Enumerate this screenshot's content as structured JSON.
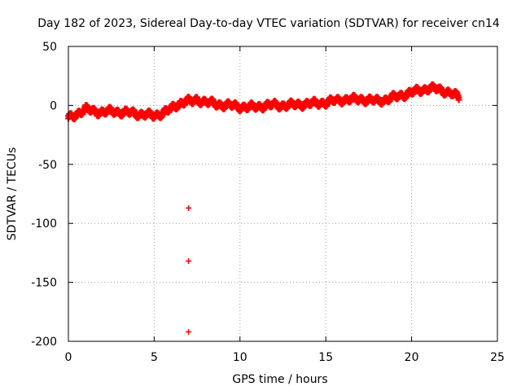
{
  "chart_data": {
    "type": "scatter",
    "title": "Day 182 of 2023, Sidereal Day-to-day VTEC variation (SDTVAR) for receiver cn14",
    "xlabel": "GPS time / hours",
    "ylabel": "SDTVAR / TECUs",
    "xlim": [
      0,
      25
    ],
    "ylim": [
      -200,
      50
    ],
    "xticks": [
      0,
      5,
      10,
      15,
      20,
      25
    ],
    "yticks": [
      50,
      0,
      -50,
      -100,
      -150,
      -200
    ],
    "grid": true,
    "marker": "plus",
    "color": "#ff0000",
    "series": [
      {
        "name": "SDTVAR",
        "trace": [
          [
            0.0,
            -10
          ],
          [
            0.3,
            -8
          ],
          [
            0.6,
            -5
          ],
          [
            1.0,
            -2
          ],
          [
            1.5,
            -4
          ],
          [
            2.0,
            -4.5
          ],
          [
            2.5,
            -4
          ],
          [
            3.0,
            -4.5
          ],
          [
            3.5,
            -5
          ],
          [
            4.0,
            -6
          ],
          [
            4.5,
            -6.5
          ],
          [
            5.0,
            -8
          ],
          [
            5.5,
            -5
          ],
          [
            6.0,
            -2
          ],
          [
            6.5,
            3
          ],
          [
            6.9,
            5
          ],
          [
            7.2,
            4
          ],
          [
            7.5,
            6
          ],
          [
            8.0,
            4
          ],
          [
            8.5,
            2.5
          ],
          [
            9.0,
            1.5
          ],
          [
            9.5,
            1
          ],
          [
            10.0,
            0
          ],
          [
            10.5,
            -0.5
          ],
          [
            11.0,
            0
          ],
          [
            11.5,
            1
          ],
          [
            12.0,
            1.5
          ],
          [
            12.5,
            1
          ],
          [
            13.0,
            1.5
          ],
          [
            13.5,
            2
          ],
          [
            14.0,
            2.5
          ],
          [
            14.5,
            3
          ],
          [
            15.0,
            3.5
          ],
          [
            15.5,
            5
          ],
          [
            16.0,
            6
          ],
          [
            16.5,
            6
          ],
          [
            17.0,
            6.5
          ],
          [
            17.5,
            5.5
          ],
          [
            18.0,
            5
          ],
          [
            18.5,
            6
          ],
          [
            19.0,
            8
          ],
          [
            19.5,
            10
          ],
          [
            20.0,
            12
          ],
          [
            20.5,
            14
          ],
          [
            21.0,
            15.5
          ],
          [
            21.5,
            15
          ],
          [
            22.0,
            13
          ],
          [
            22.5,
            10
          ],
          [
            22.8,
            7
          ]
        ],
        "outliers": [
          [
            7.0,
            -87
          ],
          [
            7.0,
            -132
          ],
          [
            7.0,
            -192
          ]
        ]
      }
    ]
  }
}
